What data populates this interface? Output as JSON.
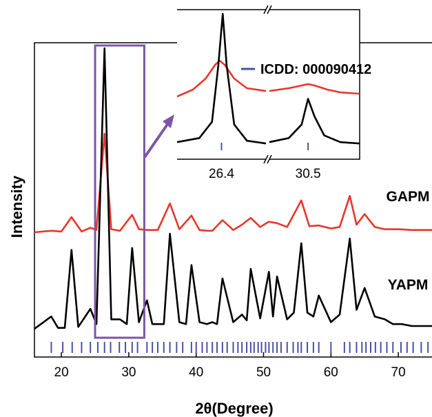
{
  "chart_data": {
    "type": "line",
    "xlabel": "2θ(Degree)",
    "ylabel": "Intensity",
    "xlim": [
      16,
      75
    ],
    "x_ticks": [
      20,
      30,
      40,
      50,
      60,
      70
    ],
    "grid": false,
    "series": [
      {
        "name": "GAPM",
        "color": "#e8352b",
        "x": [
          16,
          18.5,
          20,
          21.5,
          23,
          24.3,
          25.2,
          26.4,
          27.4,
          28.7,
          30.5,
          31.5,
          32.7,
          34.3,
          36.1,
          37.5,
          39.3,
          40.5,
          41.6,
          42.4,
          43.9,
          45.5,
          46.8,
          48.1,
          49.5,
          50.8,
          52.0,
          53.5,
          55.6,
          56.8,
          58.2,
          60.0,
          61.3,
          62.8,
          63.8,
          65.0,
          66.5,
          68.0,
          70.0,
          72.0,
          75
        ],
        "y": [
          0.1,
          0.12,
          0.11,
          0.3,
          0.11,
          0.16,
          0.13,
          1.4,
          0.14,
          0.12,
          0.33,
          0.14,
          0.13,
          0.13,
          0.48,
          0.14,
          0.32,
          0.13,
          0.12,
          0.12,
          0.26,
          0.13,
          0.2,
          0.29,
          0.17,
          0.24,
          0.22,
          0.17,
          0.52,
          0.18,
          0.19,
          0.15,
          0.17,
          0.58,
          0.2,
          0.34,
          0.17,
          0.14,
          0.14,
          0.13,
          0.13
        ]
      },
      {
        "name": "YAPM",
        "color": "#000000",
        "x": [
          16,
          18.5,
          19.5,
          20.5,
          21.5,
          22.5,
          24.3,
          25.2,
          26.4,
          27.4,
          28.7,
          29.7,
          30.5,
          31.5,
          32.7,
          33.5,
          34.3,
          35.2,
          36.1,
          37.5,
          38.5,
          39.3,
          40.5,
          41.6,
          42.4,
          43.1,
          43.9,
          45.5,
          46.8,
          47.5,
          48.1,
          49.5,
          50.8,
          51.4,
          52.0,
          53.5,
          54.5,
          55.6,
          56.5,
          57.4,
          58.2,
          60.0,
          61.3,
          62.8,
          63.8,
          65.0,
          66.5,
          68.0,
          69.2,
          70.5,
          72.0,
          75
        ],
        "y": [
          0.05,
          0.18,
          0.06,
          0.06,
          0.88,
          0.07,
          0.26,
          0.1,
          3.0,
          0.15,
          0.15,
          0.1,
          0.9,
          0.12,
          0.35,
          0.1,
          0.1,
          0.1,
          1.05,
          0.12,
          0.1,
          0.72,
          0.12,
          0.1,
          0.12,
          0.1,
          0.58,
          0.12,
          0.2,
          0.14,
          0.68,
          0.16,
          0.65,
          0.18,
          0.6,
          0.15,
          0.22,
          0.95,
          0.22,
          0.18,
          0.4,
          0.12,
          0.2,
          1.0,
          0.25,
          0.48,
          0.18,
          0.15,
          0.1,
          0.1,
          0.08,
          0.08
        ]
      }
    ],
    "reference": {
      "name": "ICDD: 000090412",
      "color": "#4b4fa6",
      "positions": [
        18.5,
        20.2,
        21.6,
        23.0,
        24.3,
        25.4,
        26.4,
        27.3,
        28.6,
        29.5,
        30.5,
        31.3,
        32.7,
        33.5,
        34.3,
        35.2,
        36.1,
        37.1,
        38.0,
        39.3,
        40.0,
        40.9,
        41.6,
        42.4,
        43.1,
        43.9,
        44.6,
        45.5,
        46.2,
        46.8,
        47.5,
        48.1,
        48.6,
        49.2,
        49.7,
        50.3,
        50.8,
        51.4,
        52.0,
        52.6,
        53.5,
        54.4,
        55.1,
        55.6,
        56.5,
        57.4,
        58.2,
        60.0,
        62.0,
        62.8,
        63.8,
        64.6,
        65.2,
        65.9,
        66.6,
        67.4,
        68.3,
        69.2,
        70.4,
        71.3,
        72.2,
        73.4,
        74.4
      ]
    },
    "inset": {
      "x_ticks": [
        "26.4",
        "30.5"
      ],
      "ref_positions": [
        26.4,
        30.5
      ],
      "legend": "ICDD: 000090412",
      "segments": [
        {
          "xlim": [
            25.7,
            27.1
          ],
          "series": [
            {
              "name": "GAPM",
              "color": "#e8352b",
              "x": [
                25.7,
                25.95,
                26.15,
                26.3,
                26.37,
                26.45,
                26.6,
                26.8,
                27.1
              ],
              "y": [
                0.43,
                0.48,
                0.56,
                0.66,
                0.69,
                0.66,
                0.56,
                0.49,
                0.47
              ]
            },
            {
              "name": "YAPM",
              "color": "#000000",
              "x": [
                25.7,
                26.05,
                26.25,
                26.35,
                26.42,
                26.48,
                26.6,
                26.8,
                27.1
              ],
              "y": [
                0.05,
                0.08,
                0.2,
                0.62,
                1.0,
                0.62,
                0.18,
                0.06,
                0.04
              ]
            }
          ]
        },
        {
          "xlim": [
            29.9,
            31.3
          ],
          "series": [
            {
              "name": "GAPM",
              "color": "#e8352b",
              "x": [
                29.9,
                30.2,
                30.4,
                30.5,
                30.6,
                30.8,
                31.0,
                31.3
              ],
              "y": [
                0.47,
                0.49,
                0.51,
                0.52,
                0.51,
                0.48,
                0.46,
                0.45
              ]
            },
            {
              "name": "YAPM",
              "color": "#000000",
              "x": [
                29.9,
                30.2,
                30.4,
                30.5,
                30.6,
                30.75,
                31.0,
                31.3
              ],
              "y": [
                0.05,
                0.08,
                0.18,
                0.37,
                0.24,
                0.1,
                0.05,
                0.04
              ]
            }
          ]
        }
      ]
    },
    "highlight": {
      "color": "#7c55a6",
      "xlim": [
        25,
        32.3
      ]
    }
  }
}
